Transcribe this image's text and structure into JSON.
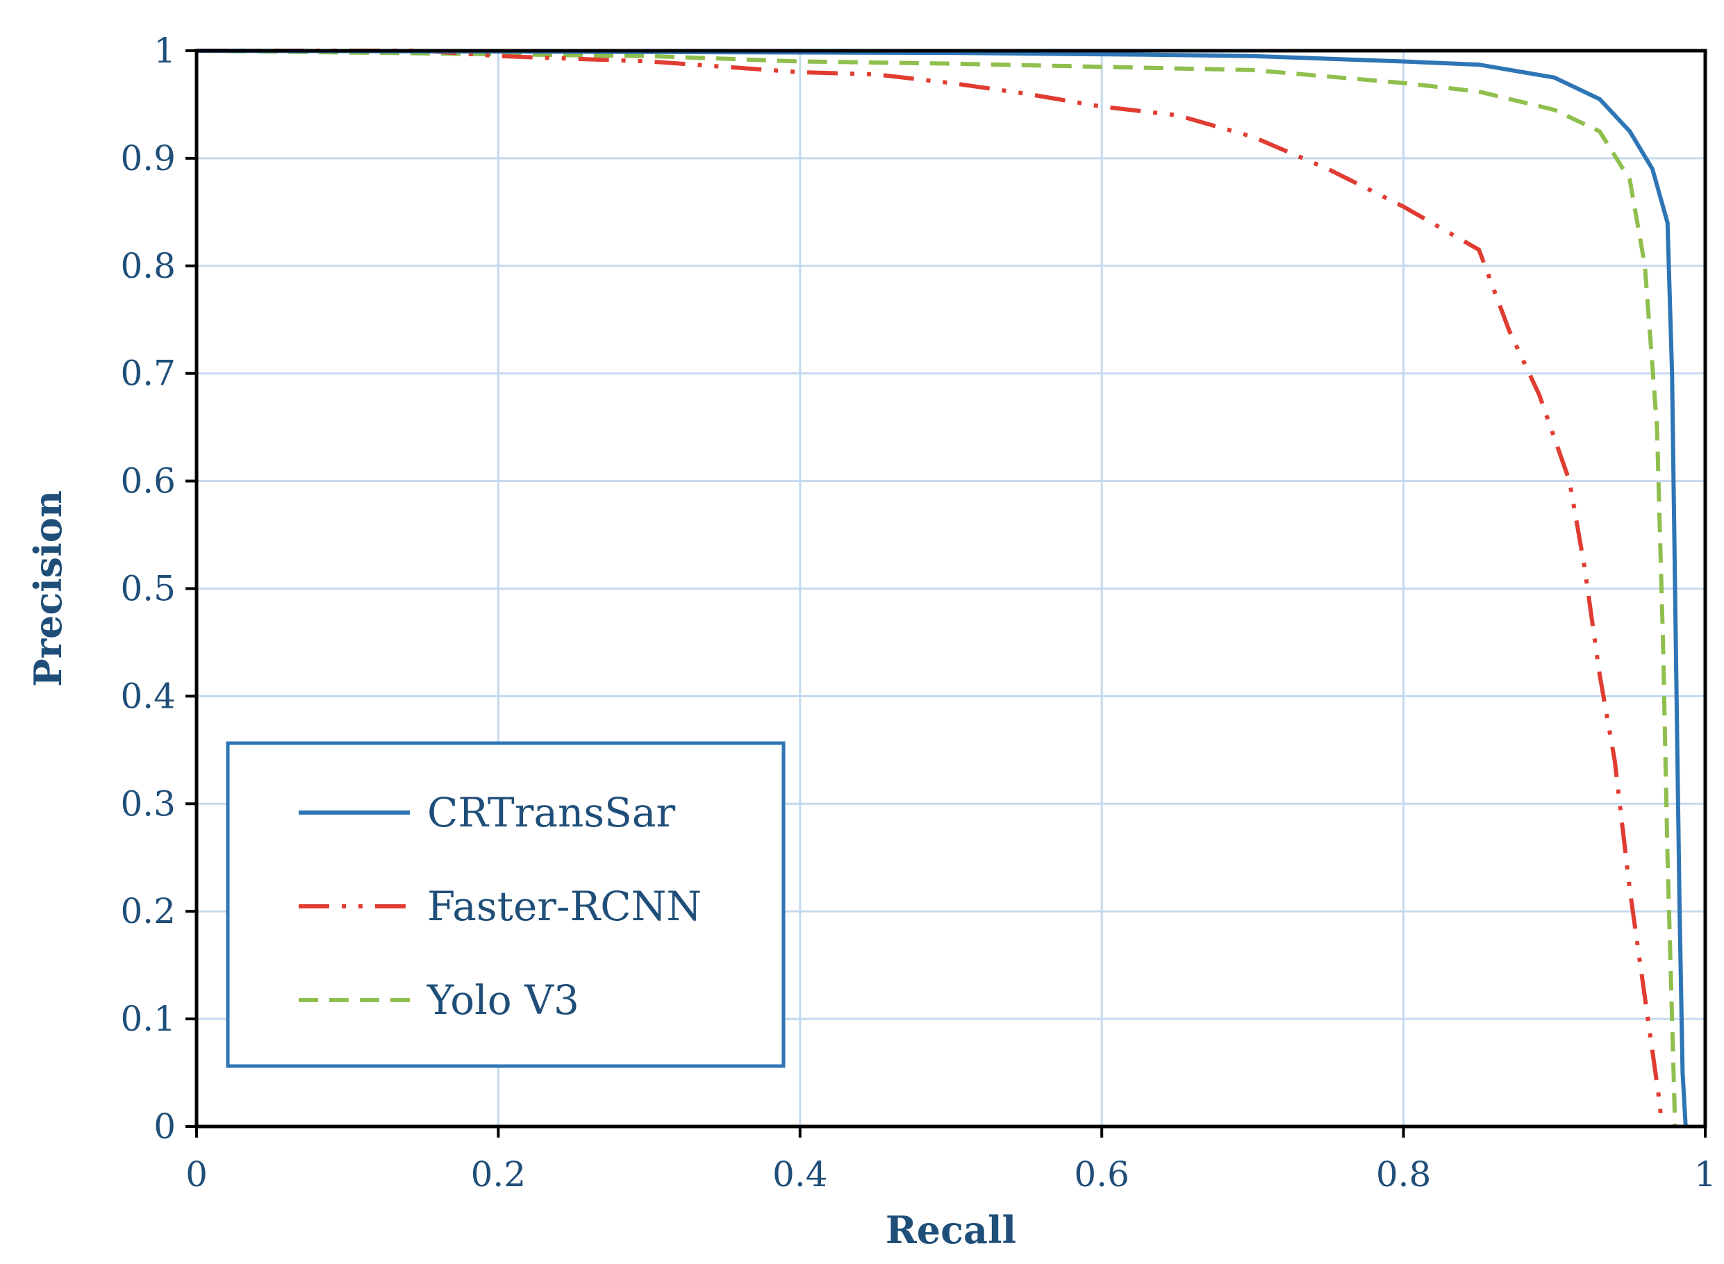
{
  "chart_data": {
    "type": "line",
    "xlabel": "Recall",
    "ylabel": "Precision",
    "xlim": [
      0,
      1
    ],
    "ylim": [
      0,
      1
    ],
    "xticks": [
      "0",
      "0.2",
      "0.4",
      "0.6",
      "0.8",
      "1"
    ],
    "yticks": [
      "0",
      "0.1",
      "0.2",
      "0.3",
      "0.4",
      "0.5",
      "0.6",
      "0.7",
      "0.8",
      "0.9",
      "1"
    ],
    "grid": true,
    "legend_position": "bottom-left",
    "series": [
      {
        "name": "CRTransSar",
        "color": "#2e75b6",
        "dash": "solid",
        "points": [
          [
            0,
            1.0
          ],
          [
            0.5,
            0.998
          ],
          [
            0.65,
            0.996
          ],
          [
            0.7,
            0.995
          ],
          [
            0.8,
            0.99
          ],
          [
            0.85,
            0.987
          ],
          [
            0.9,
            0.975
          ],
          [
            0.93,
            0.955
          ],
          [
            0.95,
            0.925
          ],
          [
            0.965,
            0.89
          ],
          [
            0.975,
            0.84
          ],
          [
            0.978,
            0.7
          ],
          [
            0.981,
            0.4
          ],
          [
            0.983,
            0.2
          ],
          [
            0.985,
            0.05
          ],
          [
            0.987,
            0.0
          ]
        ]
      },
      {
        "name": "Faster-RCNN",
        "color": "#e03c31",
        "dash": "dashdotdot",
        "points": [
          [
            0,
            1.0
          ],
          [
            0.15,
            1.0
          ],
          [
            0.2,
            0.995
          ],
          [
            0.3,
            0.99
          ],
          [
            0.35,
            0.985
          ],
          [
            0.4,
            0.98
          ],
          [
            0.45,
            0.978
          ],
          [
            0.5,
            0.97
          ],
          [
            0.55,
            0.96
          ],
          [
            0.6,
            0.948
          ],
          [
            0.65,
            0.94
          ],
          [
            0.7,
            0.92
          ],
          [
            0.75,
            0.89
          ],
          [
            0.8,
            0.855
          ],
          [
            0.85,
            0.815
          ],
          [
            0.87,
            0.74
          ],
          [
            0.89,
            0.68
          ],
          [
            0.91,
            0.6
          ],
          [
            0.92,
            0.52
          ],
          [
            0.93,
            0.42
          ],
          [
            0.94,
            0.34
          ],
          [
            0.95,
            0.22
          ],
          [
            0.96,
            0.12
          ],
          [
            0.97,
            0.02
          ],
          [
            0.971,
            0.0
          ]
        ]
      },
      {
        "name": "Yolo V3",
        "color": "#8fbf4d",
        "dash": "dashed",
        "points": [
          [
            0,
            1.0
          ],
          [
            0.3,
            0.995
          ],
          [
            0.4,
            0.99
          ],
          [
            0.5,
            0.988
          ],
          [
            0.6,
            0.985
          ],
          [
            0.7,
            0.982
          ],
          [
            0.8,
            0.97
          ],
          [
            0.85,
            0.962
          ],
          [
            0.9,
            0.945
          ],
          [
            0.93,
            0.925
          ],
          [
            0.95,
            0.88
          ],
          [
            0.96,
            0.8
          ],
          [
            0.968,
            0.65
          ],
          [
            0.972,
            0.45
          ],
          [
            0.975,
            0.25
          ],
          [
            0.978,
            0.1
          ],
          [
            0.98,
            0.0
          ]
        ]
      }
    ]
  }
}
